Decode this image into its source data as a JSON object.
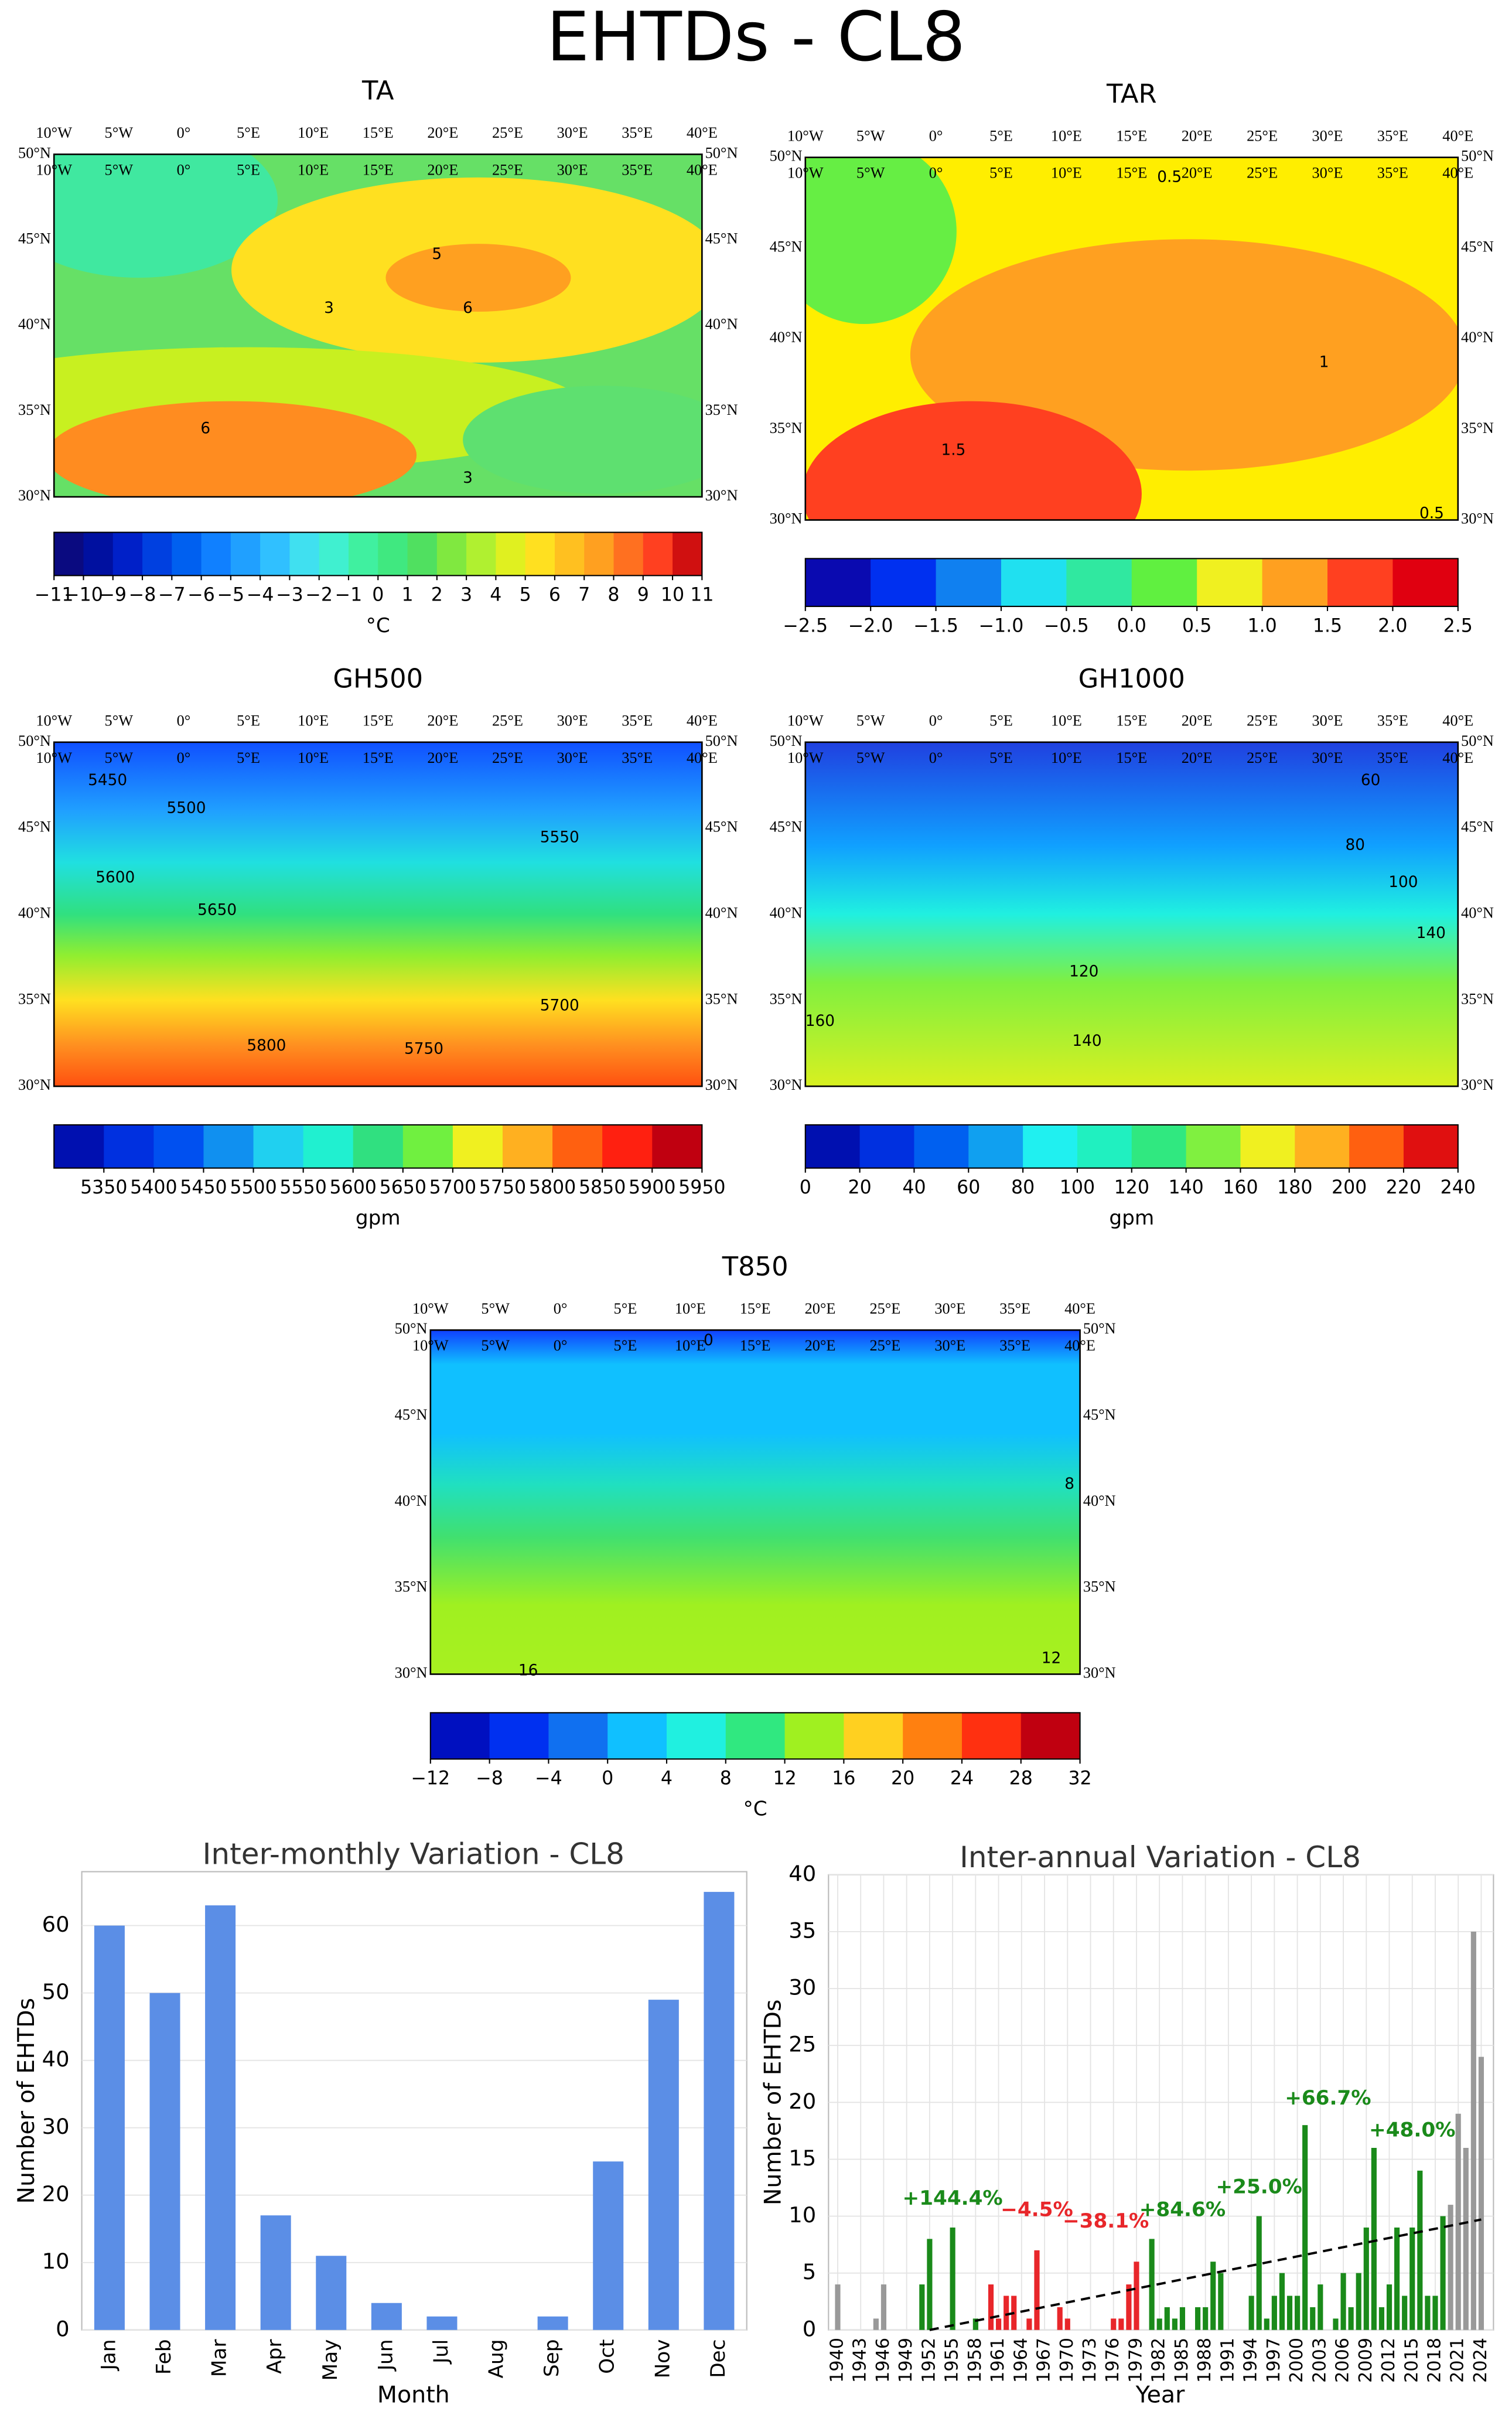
{
  "title": "EHTDs - CL8",
  "lon_labels": [
    "10°W",
    "5°W",
    "0°",
    "5°E",
    "10°E",
    "15°E",
    "20°E",
    "25°E",
    "30°E",
    "35°E",
    "40°E"
  ],
  "lat_labels": [
    "50°N",
    "45°N",
    "40°N",
    "35°N",
    "30°N"
  ],
  "maps": [
    {
      "title": "TA",
      "unit": "°C",
      "colorbar": {
        "colors": [
          "#0a0a80",
          "#0010a0",
          "#0020c8",
          "#0040e0",
          "#0060f0",
          "#1080ff",
          "#20a0ff",
          "#30c0ff",
          "#40e0f0",
          "#40f0d0",
          "#40f0a0",
          "#40e880",
          "#50e060",
          "#80e840",
          "#b0f030",
          "#e0f020",
          "#ffe020",
          "#ffc020",
          "#ffa020",
          "#ff7020",
          "#ff4020",
          "#d01010"
        ],
        "lim": [
          -11,
          11
        ],
        "ticks": [
          {
            "value": -11,
            "label": "−11"
          },
          {
            "value": -10,
            "label": "−10"
          },
          {
            "value": -9,
            "label": "−9"
          },
          {
            "value": -8,
            "label": "−8"
          },
          {
            "value": -7,
            "label": "−7"
          },
          {
            "value": -6,
            "label": "−6"
          },
          {
            "value": -5,
            "label": "−5"
          },
          {
            "value": -4,
            "label": "−4"
          },
          {
            "value": -3,
            "label": "−3"
          },
          {
            "value": -2,
            "label": "−2"
          },
          {
            "value": -1,
            "label": "−1"
          },
          0,
          1,
          2,
          3,
          4,
          5,
          6,
          7,
          8,
          9,
          10,
          11
        ]
      },
      "contour_labels": [
        "3",
        "5",
        "6",
        "6",
        "3"
      ]
    },
    {
      "title": "TAR",
      "colorbar": {
        "colors": [
          "#0a0ab0",
          "#0030f0",
          "#1080f0",
          "#20e0f0",
          "#30e8a0",
          "#60f040",
          "#f0f020",
          "#ffa020",
          "#ff4020",
          "#e00010"
        ],
        "lim": [
          -2.5,
          2.5
        ],
        "ticks": [
          {
            "value": -2.5,
            "label": "−2.5"
          },
          {
            "value": -2,
            "label": "−2.0"
          },
          {
            "value": -1.5,
            "label": "−1.5"
          },
          {
            "value": -1,
            "label": "−1.0"
          },
          {
            "value": -0.5,
            "label": "−0.5"
          },
          {
            "value": 0,
            "label": "0.0"
          },
          0.5,
          {
            "value": 1,
            "label": "1.0"
          },
          1.5,
          {
            "value": 2,
            "label": "2.0"
          },
          2.5
        ]
      },
      "contour_labels": [
        "0.5",
        "1.5",
        "1",
        "0.5"
      ]
    },
    {
      "title": "GH500",
      "unit": "gpm",
      "colorbar": {
        "colors": [
          "#0010b0",
          "#0030e0",
          "#0050f0",
          "#1090f0",
          "#20d0f0",
          "#20f0d0",
          "#30e080",
          "#70f040",
          "#f0f020",
          "#ffb020",
          "#ff6010",
          "#ff2010",
          "#c00010"
        ],
        "lim": [
          5300,
          5950
        ],
        "ticks": [
          5350,
          5400,
          5450,
          5500,
          5550,
          5600,
          5650,
          5700,
          5750,
          5800,
          5850,
          5900,
          5950
        ]
      },
      "contour_labels": [
        "5450",
        "5500",
        "5550",
        "5600",
        "5650",
        "5700",
        "5750",
        "5800"
      ]
    },
    {
      "title": "GH1000",
      "unit": "gpm",
      "colorbar": {
        "colors": [
          "#0010b0",
          "#0030e0",
          "#0060f0",
          "#10a0f0",
          "#20f0f0",
          "#20f0c0",
          "#30e880",
          "#80f040",
          "#f0f020",
          "#ffb020",
          "#ff6010",
          "#e01010"
        ],
        "lim": [
          0,
          240
        ],
        "ticks": [
          0,
          20,
          40,
          60,
          80,
          100,
          120,
          140,
          160,
          180,
          200,
          220,
          240
        ]
      },
      "contour_labels": [
        "60",
        "80",
        "100",
        "120",
        "140",
        "160",
        "140"
      ]
    },
    {
      "title": "T850",
      "unit": "°C",
      "colorbar": {
        "colors": [
          "#0010c0",
          "#0030f0",
          "#1070f0",
          "#10c0ff",
          "#20f0e0",
          "#30e880",
          "#a0f020",
          "#ffd020",
          "#ff8010",
          "#ff3010",
          "#c00010"
        ],
        "lim": [
          -12,
          32
        ],
        "ticks": [
          {
            "value": -12,
            "label": "−12"
          },
          {
            "value": -8,
            "label": "−8"
          },
          {
            "value": -4,
            "label": "−4"
          },
          0,
          4,
          8,
          12,
          16,
          20,
          24,
          28,
          32
        ]
      },
      "contour_labels": [
        "0",
        "8",
        "16",
        "12"
      ]
    }
  ],
  "chart_data": [
    {
      "type": "bar",
      "title": "Inter-monthly Variation - CL8",
      "x_label": "Month",
      "y_label": "Number of EHTDs",
      "categories": [
        "Jan",
        "Feb",
        "Mar",
        "Apr",
        "May",
        "Jun",
        "Jul",
        "Aug",
        "Sep",
        "Oct",
        "Nov",
        "Dec"
      ],
      "values": [
        60,
        50,
        63,
        17,
        11,
        4,
        2,
        0,
        2,
        25,
        49,
        65
      ],
      "color": "#5b8ee6",
      "ylim": [
        0,
        68
      ],
      "yticks": [
        0,
        10,
        20,
        30,
        40,
        50,
        60
      ],
      "grid": true
    },
    {
      "type": "bar",
      "title": "Inter-annual Variation - CL8",
      "x_label": "Year",
      "y_label": "Number of EHTDs",
      "x": [
        1940,
        1941,
        1942,
        1943,
        1944,
        1945,
        1946,
        1947,
        1948,
        1949,
        1950,
        1951,
        1952,
        1953,
        1954,
        1955,
        1956,
        1957,
        1958,
        1959,
        1960,
        1961,
        1962,
        1963,
        1964,
        1965,
        1966,
        1967,
        1968,
        1969,
        1970,
        1971,
        1972,
        1973,
        1974,
        1975,
        1976,
        1977,
        1978,
        1979,
        1980,
        1981,
        1982,
        1983,
        1984,
        1985,
        1986,
        1987,
        1988,
        1989,
        1990,
        1991,
        1992,
        1993,
        1994,
        1995,
        1996,
        1997,
        1998,
        1999,
        2000,
        2001,
        2002,
        2003,
        2004,
        2005,
        2006,
        2007,
        2008,
        2009,
        2010,
        2011,
        2012,
        2013,
        2014,
        2015,
        2016,
        2017,
        2018,
        2019,
        2020,
        2021,
        2022,
        2023,
        2024
      ],
      "values": [
        4,
        0,
        0,
        0,
        0,
        1,
        4,
        0,
        0,
        0,
        0,
        4,
        8,
        0,
        0,
        9,
        0,
        0,
        1,
        0,
        4,
        1,
        3,
        3,
        0,
        1,
        7,
        0,
        0,
        2,
        1,
        0,
        0,
        0,
        0,
        0,
        1,
        1,
        4,
        6,
        0,
        8,
        1,
        2,
        1,
        2,
        0,
        2,
        2,
        6,
        5,
        0,
        0,
        0,
        3,
        10,
        1,
        3,
        5,
        3,
        3,
        18,
        2,
        4,
        0,
        1,
        5,
        2,
        5,
        9,
        16,
        2,
        4,
        9,
        3,
        9,
        14,
        3,
        3,
        10,
        11,
        19,
        16,
        35,
        24
      ],
      "colors": [
        "#999999",
        "#999999",
        "#999999",
        "#999999",
        "#999999",
        "#999999",
        "#999999",
        "#999999",
        "#999999",
        "#999999",
        "#999999",
        "#1a8a1a",
        "#1a8a1a",
        "#1a8a1a",
        "#1a8a1a",
        "#1a8a1a",
        "#1a8a1a",
        "#1a8a1a",
        "#1a8a1a",
        "#1a8a1a",
        "#e8262a",
        "#e8262a",
        "#e8262a",
        "#e8262a",
        "#e8262a",
        "#e8262a",
        "#e8262a",
        "#e8262a",
        "#e8262a",
        "#e8262a",
        "#e8262a",
        "#e8262a",
        "#e8262a",
        "#e8262a",
        "#e8262a",
        "#e8262a",
        "#e8262a",
        "#e8262a",
        "#e8262a",
        "#e8262a",
        "#1a8a1a",
        "#1a8a1a",
        "#1a8a1a",
        "#1a8a1a",
        "#1a8a1a",
        "#1a8a1a",
        "#1a8a1a",
        "#1a8a1a",
        "#1a8a1a",
        "#1a8a1a",
        "#1a8a1a",
        "#1a8a1a",
        "#1a8a1a",
        "#1a8a1a",
        "#1a8a1a",
        "#1a8a1a",
        "#1a8a1a",
        "#1a8a1a",
        "#1a8a1a",
        "#1a8a1a",
        "#1a8a1a",
        "#1a8a1a",
        "#1a8a1a",
        "#1a8a1a",
        "#1a8a1a",
        "#1a8a1a",
        "#1a8a1a",
        "#1a8a1a",
        "#1a8a1a",
        "#1a8a1a",
        "#1a8a1a",
        "#1a8a1a",
        "#1a8a1a",
        "#1a8a1a",
        "#1a8a1a",
        "#1a8a1a",
        "#1a8a1a",
        "#1a8a1a",
        "#1a8a1a",
        "#1a8a1a",
        "#999999",
        "#999999",
        "#999999",
        "#999999",
        "#999999"
      ],
      "xlim": [
        1938.8,
        2025.6
      ],
      "xticks": [
        1940,
        1943,
        1946,
        1949,
        1952,
        1955,
        1958,
        1961,
        1964,
        1967,
        1970,
        1973,
        1976,
        1979,
        1982,
        1985,
        1988,
        1991,
        1994,
        1997,
        2000,
        2003,
        2006,
        2009,
        2012,
        2015,
        2018,
        2021,
        2024
      ],
      "ylim": [
        0,
        40
      ],
      "yticks": [
        0,
        5,
        10,
        15,
        20,
        25,
        30,
        35,
        40
      ],
      "grid": true,
      "trend": {
        "x": [
          1952,
          2024
        ],
        "values": [
          0,
          9.7
        ]
      },
      "annotations": [
        {
          "text": "+144.4%",
          "x": 1955,
          "y": 11.5,
          "color": "#1a8a1a"
        },
        {
          "text": "−4.5%",
          "x": 1966,
          "y": 10.5,
          "color": "#e8262a"
        },
        {
          "text": "−38.1%",
          "x": 1975,
          "y": 9.5,
          "color": "#e8262a"
        },
        {
          "text": "+84.6%",
          "x": 1985,
          "y": 10.5,
          "color": "#1a8a1a"
        },
        {
          "text": "+25.0%",
          "x": 1995,
          "y": 12.5,
          "color": "#1a8a1a"
        },
        {
          "text": "+66.7%",
          "x": 2004,
          "y": 20.3,
          "color": "#1a8a1a"
        },
        {
          "text": "+48.0%",
          "x": 2015,
          "y": 17.5,
          "color": "#1a8a1a"
        }
      ]
    }
  ]
}
